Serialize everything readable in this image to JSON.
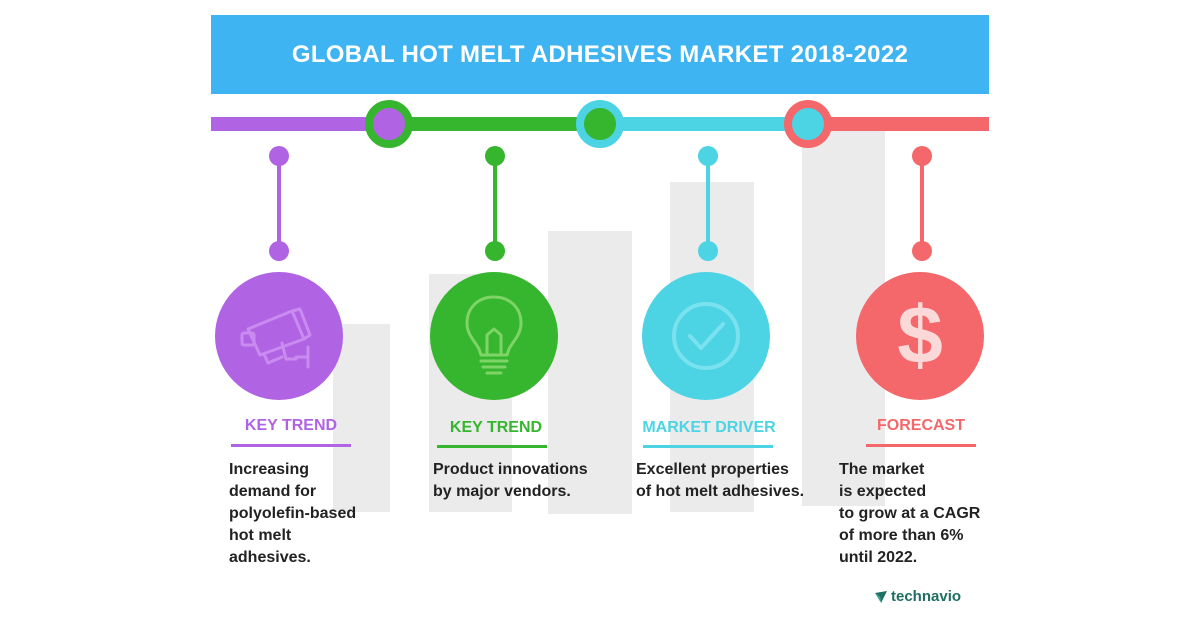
{
  "header": {
    "title": "GLOBAL HOT MELT ADHESIVES MARKET 2018-2022"
  },
  "colors": {
    "header": "#3FB4F2",
    "purple": "#B064E3",
    "green": "#36B52F",
    "cyan": "#4DD4E4",
    "red": "#F4676A",
    "icon_purple": "#C98BEF",
    "icon_green": "#7FD467",
    "icon_cyan": "#7AE2EE",
    "icon_red": "#FFFFFF"
  },
  "cards": [
    {
      "label": "KEY TREND",
      "icon": "cctv-camera-icon",
      "description": [
        "Increasing",
        "demand for",
        "polyolefin-based",
        "hot melt",
        "adhesives."
      ]
    },
    {
      "label": "KEY TREND",
      "icon": "lightbulb-icon",
      "description": [
        "Product innovations",
        "by major vendors."
      ]
    },
    {
      "label": "MARKET DRIVER",
      "icon": "checkmark-icon",
      "description": [
        "Excellent properties",
        "of hot melt adhesives."
      ]
    },
    {
      "label": "FORECAST",
      "icon": "dollar-icon",
      "description": [
        "The market",
        "is expected",
        "to grow at a CAGR",
        "of more than 6%",
        "until 2022."
      ]
    }
  ],
  "brand": {
    "name": "technavio",
    "icon": "technavio-logo-icon"
  }
}
